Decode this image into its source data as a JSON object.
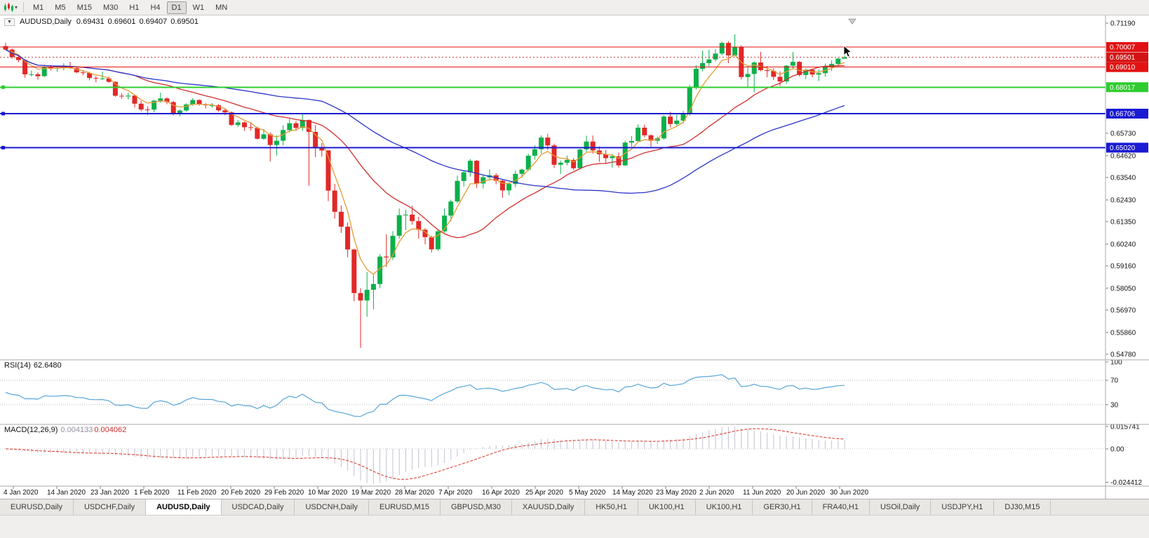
{
  "toolbar": {
    "timeframes": [
      "M1",
      "M5",
      "M15",
      "M30",
      "H1",
      "H4",
      "D1",
      "W1",
      "MN"
    ],
    "active_timeframe": "D1"
  },
  "chart": {
    "symbol_title": "AUDUSD,Daily",
    "ohlc": {
      "open": "0.69431",
      "high": "0.69601",
      "low": "0.69407",
      "close": "0.69501"
    },
    "current_price": {
      "value": 0.69501,
      "label": "0.69501",
      "bg": "#d31414"
    },
    "levels": [
      {
        "value": 0.70007,
        "label": "0.70007",
        "color": "#e31212",
        "width": 1,
        "handle": false,
        "type": "resistance"
      },
      {
        "value": 0.6901,
        "label": "0.69010",
        "color": "#e31212",
        "width": 1,
        "handle": false,
        "type": "resistance"
      },
      {
        "value": 0.68017,
        "label": "0.68017",
        "color": "#2ecc2e",
        "width": 2,
        "handle": true,
        "type": "support"
      },
      {
        "value": 0.66706,
        "label": "0.66706",
        "color": "#1a1ad2",
        "width": 2,
        "handle": true,
        "type": "support"
      },
      {
        "value": 0.6502,
        "label": "0.65020",
        "color": "#1a1ad2",
        "width": 2,
        "handle": true,
        "type": "support"
      }
    ],
    "price_axis": {
      "top_value": 0.7119,
      "bottom_value": 0.5478,
      "plain_labels": [
        {
          "text": "0.71190",
          "value": 0.7119
        },
        {
          "text": "0.65730",
          "value": 0.6573
        },
        {
          "text": "0.64620",
          "value": 0.6462
        },
        {
          "text": "0.63540",
          "value": 0.6354
        },
        {
          "text": "0.62430",
          "value": 0.6243
        },
        {
          "text": "0.61350",
          "value": 0.6135
        },
        {
          "text": "0.60240",
          "value": 0.6024
        },
        {
          "text": "0.59160",
          "value": 0.5916
        },
        {
          "text": "0.58050",
          "value": 0.5805
        },
        {
          "text": "0.56970",
          "value": 0.5697
        },
        {
          "text": "0.55860",
          "value": 0.5586
        },
        {
          "text": "0.54780",
          "value": 0.5478
        }
      ]
    },
    "date_axis": [
      "4 Jan 2020",
      "14 Jan 2020",
      "23 Jan 2020",
      "1 Feb 2020",
      "11 Feb 2020",
      "20 Feb 2020",
      "29 Feb 2020",
      "10 Mar 2020",
      "19 Mar 2020",
      "28 Mar 2020",
      "7 Apr 2020",
      "16 Apr 2020",
      "25 Apr 2020",
      "5 May 2020",
      "14 May 2020",
      "23 May 2020",
      "2 Jun 2020",
      "11 Jun 2020",
      "20 Jun 2020",
      "30 Jun 2020"
    ]
  },
  "indicators": {
    "rsi": {
      "label": "RSI(14)",
      "value": "62.6480",
      "period": 14,
      "color": "#58a6d8",
      "levels": [
        {
          "text": "100",
          "value": 100
        },
        {
          "text": "70",
          "value": 70
        },
        {
          "text": "30",
          "value": 30
        }
      ]
    },
    "macd": {
      "label": "MACD(12,26,9)",
      "value_main": "0.004133",
      "value_signal": "0.004062",
      "histogram_color": "#c2c2d2",
      "signal_color": "#d93025",
      "axis_labels": {
        "max": "0.015741",
        "zero": "0.00",
        "min": "-0.024412"
      }
    }
  },
  "chart_data": {
    "type": "candlestick",
    "symbol": "AUDUSD",
    "timeframe": "Daily",
    "up_color": "#0cb04a",
    "down_color": "#e22828",
    "price_range": {
      "top": 0.7119,
      "bottom": 0.5478
    },
    "moving_averages": [
      {
        "kind": "ema",
        "period": 5,
        "color": "#e39b35"
      },
      {
        "kind": "sma",
        "period": 21,
        "color": "#d12f2f"
      },
      {
        "kind": "sma",
        "period": 50,
        "color": "#2c35c8"
      }
    ],
    "candles": [
      [
        0.7005,
        0.7022,
        0.6984,
        0.6988
      ],
      [
        0.6988,
        0.6994,
        0.6943,
        0.6951
      ],
      [
        0.6951,
        0.6958,
        0.6925,
        0.6936
      ],
      [
        0.6936,
        0.6941,
        0.6849,
        0.6865
      ],
      [
        0.6865,
        0.6884,
        0.6855,
        0.6866
      ],
      [
        0.6866,
        0.6875,
        0.6838,
        0.6856
      ],
      [
        0.6856,
        0.6912,
        0.6852,
        0.6901
      ],
      [
        0.6901,
        0.691,
        0.6884,
        0.6896
      ],
      [
        0.6896,
        0.6902,
        0.6877,
        0.6896
      ],
      [
        0.6896,
        0.692,
        0.6886,
        0.6904
      ],
      [
        0.6904,
        0.6927,
        0.6892,
        0.6896
      ],
      [
        0.6896,
        0.6904,
        0.687,
        0.6875
      ],
      [
        0.6875,
        0.6884,
        0.6861,
        0.6872
      ],
      [
        0.6872,
        0.6878,
        0.6836,
        0.6847
      ],
      [
        0.6847,
        0.6857,
        0.6826,
        0.6844
      ],
      [
        0.6844,
        0.6879,
        0.6837,
        0.6845
      ],
      [
        0.6845,
        0.6854,
        0.6823,
        0.6828
      ],
      [
        0.6828,
        0.6831,
        0.6754,
        0.6759
      ],
      [
        0.6759,
        0.6772,
        0.6744,
        0.6756
      ],
      [
        0.6756,
        0.6775,
        0.6741,
        0.676
      ],
      [
        0.676,
        0.6765,
        0.67,
        0.672
      ],
      [
        0.672,
        0.6733,
        0.6682,
        0.6691
      ],
      [
        0.6691,
        0.6707,
        0.6663,
        0.669
      ],
      [
        0.669,
        0.6738,
        0.6678,
        0.6735
      ],
      [
        0.6735,
        0.6774,
        0.6725,
        0.6746
      ],
      [
        0.6746,
        0.6752,
        0.6717,
        0.6728
      ],
      [
        0.6728,
        0.6733,
        0.6662,
        0.6672
      ],
      [
        0.6672,
        0.6692,
        0.6657,
        0.6686
      ],
      [
        0.6686,
        0.6722,
        0.668,
        0.6716
      ],
      [
        0.6716,
        0.6748,
        0.671,
        0.6738
      ],
      [
        0.6738,
        0.6742,
        0.671,
        0.6716
      ],
      [
        0.6716,
        0.6723,
        0.6697,
        0.6712
      ],
      [
        0.6712,
        0.6723,
        0.67,
        0.6712
      ],
      [
        0.6712,
        0.6718,
        0.668,
        0.6687
      ],
      [
        0.6687,
        0.6693,
        0.6662,
        0.6677
      ],
      [
        0.6677,
        0.6682,
        0.661,
        0.6614
      ],
      [
        0.6614,
        0.664,
        0.6604,
        0.6627
      ],
      [
        0.6627,
        0.6632,
        0.6585,
        0.6603
      ],
      [
        0.6603,
        0.6628,
        0.6586,
        0.66
      ],
      [
        0.66,
        0.6606,
        0.6542,
        0.6546
      ],
      [
        0.6546,
        0.6594,
        0.6541,
        0.6568
      ],
      [
        0.6568,
        0.6577,
        0.6433,
        0.6515
      ],
      [
        0.6515,
        0.6563,
        0.6463,
        0.6536
      ],
      [
        0.6536,
        0.6612,
        0.6513,
        0.6589
      ],
      [
        0.6589,
        0.6645,
        0.6576,
        0.6623
      ],
      [
        0.6623,
        0.6634,
        0.6585,
        0.66
      ],
      [
        0.66,
        0.6668,
        0.6585,
        0.6639
      ],
      [
        0.6639,
        0.6642,
        0.6313,
        0.658
      ],
      [
        0.658,
        0.6613,
        0.6455,
        0.6501
      ],
      [
        0.6501,
        0.6524,
        0.6457,
        0.6488
      ],
      [
        0.6488,
        0.649,
        0.6237,
        0.6289
      ],
      [
        0.6289,
        0.6322,
        0.615,
        0.6184
      ],
      [
        0.6184,
        0.6215,
        0.6079,
        0.611
      ],
      [
        0.611,
        0.6132,
        0.5958,
        0.5997
      ],
      [
        0.5997,
        0.6001,
        0.574,
        0.5781
      ],
      [
        0.5781,
        0.5805,
        0.551,
        0.5744
      ],
      [
        0.5744,
        0.5885,
        0.5664,
        0.5797
      ],
      [
        0.5797,
        0.587,
        0.57,
        0.5826
      ],
      [
        0.5826,
        0.5974,
        0.5805,
        0.5962
      ],
      [
        0.5962,
        0.6072,
        0.591,
        0.5958
      ],
      [
        0.5958,
        0.6088,
        0.5945,
        0.6065
      ],
      [
        0.6065,
        0.62,
        0.605,
        0.6167
      ],
      [
        0.6167,
        0.6195,
        0.6093,
        0.617
      ],
      [
        0.617,
        0.6214,
        0.612,
        0.6138
      ],
      [
        0.6138,
        0.6159,
        0.6051,
        0.6095
      ],
      [
        0.6095,
        0.6103,
        0.6023,
        0.6058
      ],
      [
        0.6058,
        0.6065,
        0.5982,
        0.5998
      ],
      [
        0.5998,
        0.6096,
        0.599,
        0.6087
      ],
      [
        0.6087,
        0.62,
        0.6079,
        0.6165
      ],
      [
        0.6165,
        0.6244,
        0.6136,
        0.6235
      ],
      [
        0.6235,
        0.6363,
        0.6226,
        0.6337
      ],
      [
        0.6337,
        0.6388,
        0.6309,
        0.638
      ],
      [
        0.638,
        0.6445,
        0.6358,
        0.6437
      ],
      [
        0.6437,
        0.6441,
        0.6302,
        0.6324
      ],
      [
        0.6324,
        0.6368,
        0.63,
        0.6355
      ],
      [
        0.6355,
        0.6394,
        0.6338,
        0.6365
      ],
      [
        0.6365,
        0.6375,
        0.632,
        0.6338
      ],
      [
        0.6338,
        0.6342,
        0.6253,
        0.629
      ],
      [
        0.629,
        0.633,
        0.6266,
        0.6322
      ],
      [
        0.6322,
        0.6389,
        0.6305,
        0.6372
      ],
      [
        0.6372,
        0.6398,
        0.6353,
        0.6393
      ],
      [
        0.6393,
        0.6472,
        0.6386,
        0.6462
      ],
      [
        0.6462,
        0.6513,
        0.6442,
        0.6494
      ],
      [
        0.6494,
        0.6563,
        0.6473,
        0.6552
      ],
      [
        0.6552,
        0.657,
        0.649,
        0.6513
      ],
      [
        0.6513,
        0.6522,
        0.6402,
        0.6417
      ],
      [
        0.6417,
        0.6438,
        0.6372,
        0.6427
      ],
      [
        0.6427,
        0.6463,
        0.6414,
        0.6441
      ],
      [
        0.6441,
        0.645,
        0.6391,
        0.64
      ],
      [
        0.64,
        0.6497,
        0.6394,
        0.6493
      ],
      [
        0.6493,
        0.6561,
        0.6482,
        0.6532
      ],
      [
        0.6532,
        0.6562,
        0.6473,
        0.6488
      ],
      [
        0.6488,
        0.6508,
        0.6432,
        0.6469
      ],
      [
        0.6469,
        0.649,
        0.6421,
        0.645
      ],
      [
        0.645,
        0.6471,
        0.6403,
        0.6459
      ],
      [
        0.6459,
        0.6478,
        0.6404,
        0.6414
      ],
      [
        0.6414,
        0.6536,
        0.6411,
        0.6527
      ],
      [
        0.6527,
        0.656,
        0.6507,
        0.6535
      ],
      [
        0.6535,
        0.6617,
        0.6531,
        0.6601
      ],
      [
        0.6601,
        0.6616,
        0.6553,
        0.6563
      ],
      [
        0.6563,
        0.6568,
        0.6506,
        0.6536
      ],
      [
        0.6536,
        0.6557,
        0.652,
        0.6548
      ],
      [
        0.6548,
        0.6663,
        0.6541,
        0.6656
      ],
      [
        0.6656,
        0.668,
        0.6602,
        0.6619
      ],
      [
        0.6619,
        0.6666,
        0.661,
        0.6636
      ],
      [
        0.6636,
        0.6684,
        0.6622,
        0.6667
      ],
      [
        0.6667,
        0.6813,
        0.6661,
        0.6798
      ],
      [
        0.6798,
        0.6911,
        0.679,
        0.6893
      ],
      [
        0.6893,
        0.6983,
        0.688,
        0.6921
      ],
      [
        0.6921,
        0.6988,
        0.6905,
        0.6939
      ],
      [
        0.6939,
        0.699,
        0.6929,
        0.6968
      ],
      [
        0.6968,
        0.7027,
        0.6959,
        0.7021
      ],
      [
        0.7021,
        0.703,
        0.692,
        0.6959
      ],
      [
        0.6959,
        0.7064,
        0.6955,
        0.7
      ],
      [
        0.7,
        0.7009,
        0.684,
        0.6852
      ],
      [
        0.6852,
        0.6902,
        0.6798,
        0.6867
      ],
      [
        0.6867,
        0.693,
        0.6776,
        0.6924
      ],
      [
        0.6924,
        0.6977,
        0.688,
        0.6886
      ],
      [
        0.6886,
        0.6907,
        0.6851,
        0.6882
      ],
      [
        0.6882,
        0.6896,
        0.6837,
        0.6853
      ],
      [
        0.6853,
        0.688,
        0.6808,
        0.683
      ],
      [
        0.683,
        0.6911,
        0.6819,
        0.6908
      ],
      [
        0.6908,
        0.6976,
        0.689,
        0.6927
      ],
      [
        0.6927,
        0.6932,
        0.6855,
        0.6862
      ],
      [
        0.6862,
        0.6895,
        0.6842,
        0.6888
      ],
      [
        0.6888,
        0.6893,
        0.6851,
        0.6864
      ],
      [
        0.6864,
        0.689,
        0.6832,
        0.6871
      ],
      [
        0.6871,
        0.6918,
        0.6853,
        0.6903
      ],
      [
        0.6903,
        0.6934,
        0.6883,
        0.6917
      ],
      [
        0.6917,
        0.6948,
        0.6902,
        0.6943
      ],
      [
        0.69431,
        0.69601,
        0.69407,
        0.69501
      ]
    ]
  },
  "tabs": {
    "items": [
      "EURUSD,Daily",
      "USDCHF,Daily",
      "AUDUSD,Daily",
      "USDCAD,Daily",
      "USDCNH,Daily",
      "EURUSD,M15",
      "GBPUSD,M30",
      "XAUUSD,Daily",
      "HK50,H1",
      "UK100,H1",
      "UK100,H1",
      "GER30,H1",
      "FRA40,H1",
      "USOil,Daily",
      "USDJPY,H1",
      "DJ30,M15"
    ],
    "active": "AUDUSD,Daily",
    "active_index": 2
  }
}
